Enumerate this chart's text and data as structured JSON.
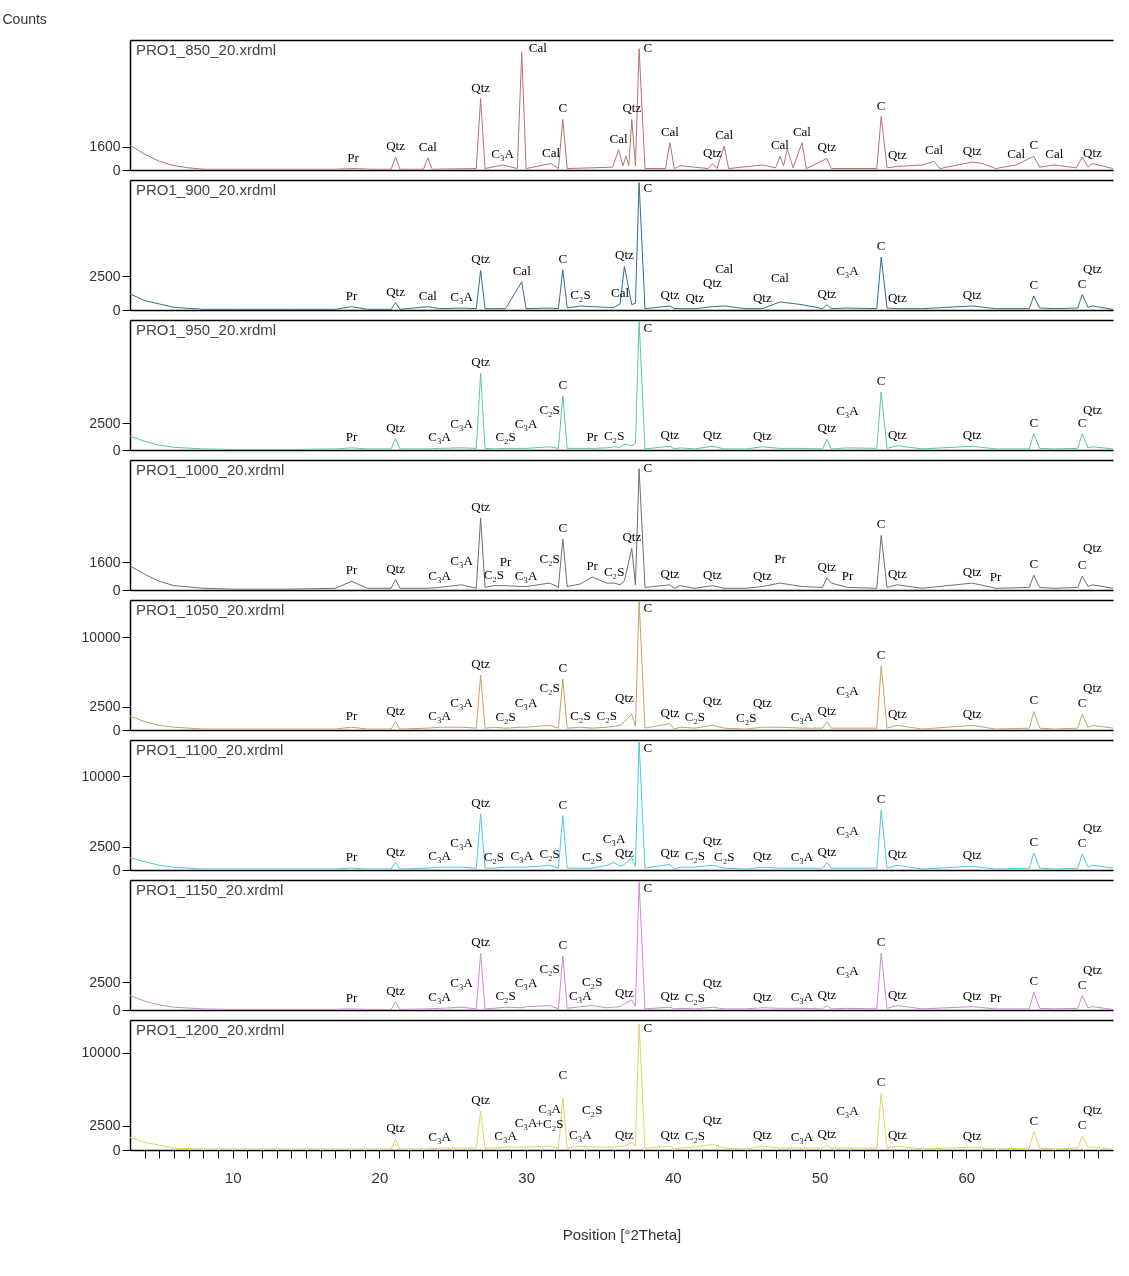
{
  "chart_data": [
    {
      "type": "line",
      "title": "PRO1_850_20.xrdml",
      "ylabel": "Counts",
      "color": "#b5736e",
      "tick_labels": "y",
      "xlim": [
        3,
        70
      ],
      "ylim": [
        0,
        9000
      ],
      "yticks": [
        0,
        1600
      ],
      "x": [
        3,
        4,
        5,
        6,
        7,
        8,
        10,
        14,
        17,
        18.2,
        19.5,
        20.8,
        21.1,
        21.4,
        23,
        23.3,
        23.6,
        26.6,
        26.9,
        27.2,
        28.4,
        29.4,
        29.7,
        30,
        31.7,
        32.2,
        32.5,
        32.8,
        34.5,
        35.9,
        36.3,
        36.6,
        36.8,
        37,
        37.2,
        37.45,
        37.7,
        38.1,
        39.5,
        39.8,
        40.1,
        40.5,
        42.4,
        42.7,
        43,
        43.5,
        43.8,
        46.1,
        47,
        47.3,
        47.55,
        47.8,
        48.2,
        48.8,
        49.1,
        50.5,
        50.8,
        53.9,
        54.2,
        54.6,
        55.3,
        57,
        57.8,
        58.2,
        60.4,
        61.1,
        62,
        63.4,
        64.6,
        65,
        66,
        67.5,
        67.9,
        68.3,
        68.6,
        70
      ],
      "values": [
        1700,
        1100,
        600,
        300,
        150,
        50,
        50,
        50,
        50,
        100,
        50,
        50,
        900,
        50,
        50,
        850,
        50,
        100,
        4950,
        100,
        350,
        100,
        8150,
        100,
        450,
        100,
        3500,
        100,
        150,
        200,
        1400,
        300,
        950,
        300,
        3500,
        300,
        8400,
        100,
        100,
        1900,
        100,
        300,
        100,
        450,
        100,
        1650,
        100,
        350,
        150,
        950,
        300,
        1450,
        150,
        1900,
        100,
        800,
        100,
        100,
        3700,
        150,
        250,
        350,
        600,
        100,
        550,
        450,
        100,
        350,
        950,
        200,
        350,
        150,
        900,
        200,
        450,
        100
      ],
      "annotations": [
        {
          "text": "Pr",
          "x": 18.2,
          "y": 100
        },
        {
          "text": "Qtz",
          "x": 21.1,
          "y": 900
        },
        {
          "text": "Cal",
          "x": 23.3,
          "y": 850
        },
        {
          "text": "Qtz",
          "x": 26.9,
          "y": 4950
        },
        {
          "text": "C₃A",
          "x": 28.4,
          "y": 350
        },
        {
          "text": "Cal",
          "x": 29.7,
          "y": 8150
        },
        {
          "text": "Cal",
          "x": 31.7,
          "y": 450
        },
        {
          "text": "C",
          "x": 32.5,
          "y": 3500
        },
        {
          "text": "Cal",
          "x": 36.3,
          "y": 1400
        },
        {
          "text": "Qtz",
          "x": 37.2,
          "y": 3500
        },
        {
          "text": "C",
          "x": 37.7,
          "y": 8400
        },
        {
          "text": "Cal",
          "x": 39.8,
          "y": 1900
        },
        {
          "text": "Qtz",
          "x": 42.7,
          "y": 450
        },
        {
          "text": "Cal",
          "x": 43.5,
          "y": 1650
        },
        {
          "text": "Cal",
          "x": 47.3,
          "y": 950
        },
        {
          "text": "Cal",
          "x": 48.8,
          "y": 1900
        },
        {
          "text": "Qtz",
          "x": 50.5,
          "y": 800
        },
        {
          "text": "C",
          "x": 54.2,
          "y": 3700
        },
        {
          "text": "Qtz",
          "x": 55.3,
          "y": 250
        },
        {
          "text": "Cal",
          "x": 57.8,
          "y": 600
        },
        {
          "text": "Qtz",
          "x": 60.4,
          "y": 550
        },
        {
          "text": "Cal",
          "x": 63.4,
          "y": 350
        },
        {
          "text": "C",
          "x": 64.6,
          "y": 950
        },
        {
          "text": "Cal",
          "x": 66,
          "y": 350
        },
        {
          "text": "Qtz",
          "x": 68.6,
          "y": 450
        }
      ]
    },
    {
      "type": "line",
      "title": "PRO1_900_20.xrdml",
      "color": "#336e8c",
      "tick_labels": "y",
      "xlim": [
        3,
        70
      ],
      "ylim": [
        0,
        9700
      ],
      "yticks": [
        0,
        2500
      ],
      "x": [
        3,
        4,
        5,
        6,
        8,
        10,
        14,
        17,
        18.1,
        19.2,
        20.8,
        21.1,
        21.4,
        23.3,
        24.1,
        25.6,
        26.6,
        26.9,
        27.2,
        27.8,
        28.6,
        29.7,
        30,
        31.6,
        32.2,
        32.5,
        32.8,
        33.7,
        34.5,
        35.5,
        36,
        36.4,
        36.7,
        37.2,
        37.45,
        37.7,
        38.1,
        39.8,
        40.1,
        40.5,
        41.5,
        42.7,
        43.5,
        45,
        46.1,
        47.3,
        48.8,
        50.2,
        50.5,
        50.8,
        51.9,
        53.9,
        54.2,
        54.6,
        55.3,
        57,
        60.4,
        62,
        64.3,
        64.6,
        65,
        66,
        67.6,
        67.9,
        68.3,
        68.6,
        70
      ],
      "values": [
        1200,
        700,
        450,
        200,
        50,
        50,
        50,
        50,
        250,
        50,
        50,
        550,
        50,
        250,
        100,
        150,
        100,
        2950,
        100,
        100,
        100,
        2100,
        100,
        150,
        100,
        3000,
        150,
        300,
        250,
        200,
        200,
        450,
        3250,
        400,
        500,
        9500,
        100,
        300,
        100,
        100,
        100,
        250,
        300,
        100,
        100,
        600,
        400,
        100,
        400,
        100,
        150,
        100,
        3950,
        150,
        100,
        100,
        300,
        100,
        100,
        1050,
        150,
        100,
        150,
        1150,
        200,
        300,
        50
      ],
      "annotations": [
        {
          "text": "Pr",
          "x": 18.1,
          "y": 250
        },
        {
          "text": "Qtz",
          "x": 21.1,
          "y": 550
        },
        {
          "text": "Cal",
          "x": 23.3,
          "y": 250
        },
        {
          "text": "C₃A",
          "x": 25.6,
          "y": 150
        },
        {
          "text": "Qtz",
          "x": 26.9,
          "y": 2950
        },
        {
          "text": "Cal",
          "x": 29.7,
          "y": 2100
        },
        {
          "text": "C",
          "x": 32.5,
          "y": 3000
        },
        {
          "text": "C₂S",
          "x": 33.7,
          "y": 300
        },
        {
          "text": "Cal",
          "x": 36.4,
          "y": 450
        },
        {
          "text": "Qtz",
          "x": 36.7,
          "y": 3250
        },
        {
          "text": "C",
          "x": 37.7,
          "y": 9500
        },
        {
          "text": "Qtz",
          "x": 39.8,
          "y": 300
        },
        {
          "text": "Qtz",
          "x": 41.5,
          "y": 100
        },
        {
          "text": "Qtz",
          "x": 42.7,
          "y": 250
        },
        {
          "text": "Cal",
          "x": 43.5,
          "y": 300
        },
        {
          "text": "Qtz",
          "x": 46.1,
          "y": 100
        },
        {
          "text": "Cal",
          "x": 47.3,
          "y": 600
        },
        {
          "text": "Qtz",
          "x": 50.5,
          "y": 400
        },
        {
          "text": "C₃A",
          "x": 51.9,
          "y": 150
        },
        {
          "text": "C",
          "x": 54.2,
          "y": 3950
        },
        {
          "text": "Qtz",
          "x": 55.3,
          "y": 100
        },
        {
          "text": "Qtz",
          "x": 60.4,
          "y": 300
        },
        {
          "text": "C",
          "x": 64.6,
          "y": 1050
        },
        {
          "text": "C",
          "x": 67.9,
          "y": 1150
        },
        {
          "text": "Qtz",
          "x": 68.6,
          "y": 300
        }
      ]
    },
    {
      "type": "line",
      "title": "PRO1_950_20.xrdml",
      "color": "#55c8a0",
      "tick_labels": "y",
      "xlim": [
        3,
        70
      ],
      "ylim": [
        0,
        12100
      ],
      "yticks": [
        0,
        2500
      ],
      "x": [
        3,
        4,
        5,
        6,
        8,
        10,
        14,
        17,
        18.1,
        19.2,
        20.8,
        21.1,
        21.4,
        23.3,
        24.1,
        25.6,
        26.6,
        26.9,
        27.2,
        27.8,
        28.6,
        29.7,
        30,
        31.6,
        32.2,
        32.5,
        32.8,
        33.7,
        34.5,
        35.5,
        36,
        36.4,
        36.7,
        37.2,
        37.45,
        37.7,
        38.1,
        39.8,
        40.1,
        40.5,
        41.5,
        42.7,
        43.5,
        45,
        46.1,
        47.3,
        48.8,
        50.2,
        50.5,
        50.8,
        51.9,
        53.9,
        54.2,
        54.6,
        55.3,
        57,
        60.4,
        62,
        64.3,
        64.6,
        65,
        66,
        67.6,
        67.9,
        68.3,
        68.6,
        70
      ],
      "values": [
        1300,
        800,
        450,
        250,
        100,
        50,
        50,
        100,
        200,
        100,
        100,
        1050,
        100,
        100,
        150,
        200,
        150,
        7150,
        150,
        100,
        150,
        150,
        150,
        300,
        150,
        5050,
        150,
        150,
        150,
        200,
        300,
        250,
        550,
        400,
        600,
        12000,
        100,
        350,
        100,
        200,
        100,
        350,
        100,
        100,
        300,
        150,
        150,
        100,
        1000,
        100,
        200,
        150,
        5400,
        150,
        400,
        100,
        350,
        100,
        100,
        1500,
        150,
        100,
        150,
        1500,
        200,
        300,
        100
      ],
      "annotations": [
        {
          "text": "Pr",
          "x": 18.1,
          "y": 200
        },
        {
          "text": "Qtz",
          "x": 21.1,
          "y": 1050
        },
        {
          "text": "C₃A",
          "x": 24.1,
          "y": 150
        },
        {
          "text": "C₃A",
          "x": 25.6,
          "y": 200
        },
        {
          "text": "Qtz",
          "x": 26.9,
          "y": 7150
        },
        {
          "text": "C₂S",
          "x": 28.6,
          "y": 150
        },
        {
          "text": "C₃A",
          "x": 30,
          "y": 150
        },
        {
          "text": "C₂S",
          "x": 31.6,
          "y": 300
        },
        {
          "text": "C",
          "x": 32.5,
          "y": 5050
        },
        {
          "text": "Pr",
          "x": 34.5,
          "y": 150
        },
        {
          "text": "C₂S",
          "x": 36,
          "y": 300
        },
        {
          "text": "C",
          "x": 37.7,
          "y": 12000
        },
        {
          "text": "Qtz",
          "x": 39.8,
          "y": 350
        },
        {
          "text": "Qtz",
          "x": 42.7,
          "y": 350
        },
        {
          "text": "Qtz",
          "x": 46.1,
          "y": 300
        },
        {
          "text": "Qtz",
          "x": 50.5,
          "y": 1000
        },
        {
          "text": "C₃A",
          "x": 51.9,
          "y": 200
        },
        {
          "text": "C",
          "x": 54.2,
          "y": 5400
        },
        {
          "text": "Qtz",
          "x": 55.3,
          "y": 400
        },
        {
          "text": "Qtz",
          "x": 60.4,
          "y": 350
        },
        {
          "text": "C",
          "x": 64.6,
          "y": 1500
        },
        {
          "text": "C",
          "x": 67.9,
          "y": 1500
        },
        {
          "text": "Qtz",
          "x": 68.6,
          "y": 300
        }
      ]
    },
    {
      "type": "line",
      "title": "PRO1_1000_20.xrdml",
      "color": "#6e6e6e",
      "tick_labels": "y",
      "xlim": [
        3,
        70
      ],
      "ylim": [
        0,
        7500
      ],
      "yticks": [
        0,
        1600
      ],
      "x": [
        3,
        4,
        5,
        6,
        8,
        10,
        14,
        17,
        18.1,
        19.2,
        20.8,
        21.1,
        21.4,
        23.3,
        24.1,
        25.6,
        26.6,
        26.9,
        27.2,
        27.8,
        28.6,
        29.7,
        30,
        31.6,
        32.2,
        32.5,
        32.8,
        33.7,
        34.5,
        35.5,
        36,
        36.4,
        36.7,
        37.2,
        37.45,
        37.7,
        38.1,
        39.8,
        40.1,
        40.5,
        41.5,
        42.7,
        43.5,
        45,
        46.1,
        47.3,
        48.8,
        50.2,
        50.5,
        50.8,
        51.9,
        53.9,
        54.2,
        54.6,
        55.3,
        57,
        60.4,
        62,
        64.3,
        64.6,
        65,
        66,
        67.6,
        67.9,
        68.3,
        68.6,
        70
      ],
      "values": [
        1400,
        900,
        500,
        250,
        100,
        50,
        50,
        100,
        500,
        100,
        100,
        600,
        100,
        100,
        150,
        300,
        100,
        4150,
        150,
        250,
        250,
        200,
        200,
        400,
        150,
        2950,
        200,
        350,
        750,
        400,
        400,
        300,
        550,
        2400,
        300,
        7000,
        150,
        300,
        100,
        250,
        100,
        250,
        100,
        100,
        200,
        400,
        200,
        150,
        700,
        400,
        150,
        100,
        3150,
        150,
        300,
        100,
        400,
        100,
        150,
        850,
        150,
        100,
        150,
        800,
        200,
        300,
        100
      ],
      "annotations": [
        {
          "text": "Pr",
          "x": 18.1,
          "y": 500
        },
        {
          "text": "Qtz",
          "x": 21.1,
          "y": 600
        },
        {
          "text": "C₃A",
          "x": 24.1,
          "y": 150
        },
        {
          "text": "C₃A",
          "x": 25.6,
          "y": 300
        },
        {
          "text": "Qtz",
          "x": 26.9,
          "y": 4150
        },
        {
          "text": "C₂S",
          "x": 27.8,
          "y": 250
        },
        {
          "text": "Pr",
          "x": 28.6,
          "y": 250
        },
        {
          "text": "C₃A",
          "x": 30,
          "y": 200
        },
        {
          "text": "C₂S",
          "x": 31.6,
          "y": 400
        },
        {
          "text": "C",
          "x": 32.5,
          "y": 2950
        },
        {
          "text": "Pr",
          "x": 34.5,
          "y": 750
        },
        {
          "text": "C₂S",
          "x": 36,
          "y": 400
        },
        {
          "text": "Qtz",
          "x": 37.2,
          "y": 2400
        },
        {
          "text": "C",
          "x": 37.7,
          "y": 7000
        },
        {
          "text": "Qtz",
          "x": 39.8,
          "y": 300
        },
        {
          "text": "Qtz",
          "x": 42.7,
          "y": 250
        },
        {
          "text": "Qtz",
          "x": 46.1,
          "y": 200
        },
        {
          "text": "Pr",
          "x": 47.3,
          "y": 400
        },
        {
          "text": "Qtz",
          "x": 50.5,
          "y": 700
        },
        {
          "text": "Pr",
          "x": 51.9,
          "y": 150
        },
        {
          "text": "C",
          "x": 54.2,
          "y": 3150
        },
        {
          "text": "Qtz",
          "x": 55.3,
          "y": 300
        },
        {
          "text": "Qtz",
          "x": 60.4,
          "y": 400
        },
        {
          "text": "Pr",
          "x": 62,
          "y": 100
        },
        {
          "text": "C",
          "x": 64.6,
          "y": 850
        },
        {
          "text": "C",
          "x": 67.9,
          "y": 800
        },
        {
          "text": "Qtz",
          "x": 68.6,
          "y": 300
        }
      ]
    },
    {
      "type": "line",
      "title": "PRO1_1050_20.xrdml",
      "color": "#c9a064",
      "tick_labels": "y",
      "xlim": [
        3,
        70
      ],
      "ylim": [
        0,
        14000
      ],
      "yticks": [
        0,
        2500,
        10000
      ],
      "x": [
        3,
        4,
        5,
        6,
        8,
        10,
        14,
        17,
        18.1,
        19.2,
        20.8,
        21.1,
        21.4,
        23.3,
        24.1,
        25.6,
        26.6,
        26.9,
        27.2,
        27.8,
        28.6,
        29.7,
        30,
        31.6,
        32.2,
        32.5,
        32.8,
        33.7,
        34.5,
        35.5,
        36,
        36.4,
        36.7,
        37.2,
        37.45,
        37.7,
        38.1,
        39.8,
        40.1,
        40.5,
        41.5,
        42.7,
        43.5,
        45,
        46.1,
        47.3,
        48.8,
        50.2,
        50.5,
        50.8,
        51.9,
        53.9,
        54.2,
        54.6,
        55.3,
        57,
        60.4,
        62,
        64.3,
        64.6,
        65,
        66,
        67.6,
        67.9,
        68.3,
        68.6,
        70
      ],
      "values": [
        1500,
        900,
        500,
        300,
        100,
        100,
        100,
        100,
        300,
        100,
        100,
        900,
        100,
        200,
        300,
        300,
        200,
        5900,
        200,
        300,
        200,
        300,
        300,
        500,
        200,
        5500,
        200,
        300,
        200,
        300,
        400,
        500,
        900,
        1700,
        400,
        13900,
        200,
        700,
        100,
        300,
        200,
        500,
        200,
        100,
        300,
        300,
        200,
        200,
        900,
        200,
        200,
        200,
        6900,
        200,
        500,
        100,
        500,
        100,
        200,
        2000,
        200,
        100,
        200,
        1700,
        300,
        500,
        200
      ],
      "annotations": [
        {
          "text": "Pr",
          "x": 18.1,
          "y": 300
        },
        {
          "text": "Qtz",
          "x": 21.1,
          "y": 900
        },
        {
          "text": "C₃A",
          "x": 24.1,
          "y": 300
        },
        {
          "text": "C₃A",
          "x": 25.6,
          "y": 300
        },
        {
          "text": "Qtz",
          "x": 26.9,
          "y": 5900
        },
        {
          "text": "C₂S",
          "x": 28.6,
          "y": 200
        },
        {
          "text": "C₃A",
          "x": 30,
          "y": 300
        },
        {
          "text": "C₂S",
          "x": 31.6,
          "y": 500
        },
        {
          "text": "C",
          "x": 32.5,
          "y": 5500
        },
        {
          "text": "C₂S",
          "x": 33.7,
          "y": 300
        },
        {
          "text": "C₂S",
          "x": 35.5,
          "y": 300
        },
        {
          "text": "Qtz",
          "x": 36.7,
          "y": 900
        },
        {
          "text": "C",
          "x": 37.7,
          "y": 13900
        },
        {
          "text": "Qtz",
          "x": 39.8,
          "y": 700
        },
        {
          "text": "C₂S",
          "x": 41.5,
          "y": 200
        },
        {
          "text": "Qtz",
          "x": 42.7,
          "y": 500
        },
        {
          "text": "C₂S",
          "x": 45,
          "y": 100
        },
        {
          "text": "Qtz",
          "x": 46.1,
          "y": 300
        },
        {
          "text": "C₃A",
          "x": 48.8,
          "y": 200
        },
        {
          "text": "Qtz",
          "x": 50.5,
          "y": 900
        },
        {
          "text": "C₃A",
          "x": 51.9,
          "y": 200
        },
        {
          "text": "C",
          "x": 54.2,
          "y": 6900
        },
        {
          "text": "Qtz",
          "x": 55.3,
          "y": 500
        },
        {
          "text": "Qtz",
          "x": 60.4,
          "y": 500
        },
        {
          "text": "C",
          "x": 64.6,
          "y": 2000
        },
        {
          "text": "C",
          "x": 67.9,
          "y": 1700
        },
        {
          "text": "Qtz",
          "x": 68.6,
          "y": 500
        }
      ]
    },
    {
      "type": "line",
      "title": "PRO1_1100_20.xrdml",
      "color": "#4cc8dc",
      "tick_labels": "y",
      "xlim": [
        3,
        70
      ],
      "ylim": [
        0,
        13900
      ],
      "yticks": [
        0,
        2500,
        10000
      ],
      "x": [
        3,
        4,
        5,
        6,
        8,
        10,
        14,
        17,
        18.1,
        19.2,
        20.8,
        21.1,
        21.4,
        23.3,
        24.1,
        25.6,
        26.6,
        26.9,
        27.2,
        27.8,
        28.6,
        29.7,
        30,
        31.6,
        32.2,
        32.5,
        32.8,
        33.7,
        34.5,
        35.5,
        36,
        36.4,
        36.7,
        37.2,
        37.45,
        37.7,
        38.1,
        39.8,
        40.1,
        40.5,
        41.5,
        42.7,
        43.5,
        45,
        46.1,
        47.3,
        48.8,
        50.2,
        50.5,
        50.8,
        51.9,
        53.9,
        54.2,
        54.6,
        55.3,
        57,
        60.4,
        62,
        64.3,
        64.6,
        65,
        66,
        67.6,
        67.9,
        68.3,
        68.6,
        70
      ],
      "values": [
        1300,
        900,
        500,
        300,
        100,
        100,
        100,
        100,
        200,
        100,
        100,
        800,
        100,
        200,
        300,
        300,
        200,
        6000,
        200,
        200,
        300,
        300,
        300,
        500,
        200,
        5800,
        200,
        200,
        200,
        500,
        800,
        400,
        600,
        1300,
        400,
        13700,
        200,
        600,
        100,
        300,
        300,
        500,
        200,
        100,
        300,
        200,
        200,
        200,
        800,
        200,
        200,
        200,
        6400,
        200,
        500,
        100,
        400,
        100,
        200,
        1800,
        200,
        100,
        200,
        1700,
        300,
        500,
        200
      ],
      "annotations": [
        {
          "text": "Pr",
          "x": 18.1,
          "y": 200
        },
        {
          "text": "Qtz",
          "x": 21.1,
          "y": 800
        },
        {
          "text": "C₃A",
          "x": 24.1,
          "y": 300
        },
        {
          "text": "C₃A",
          "x": 25.6,
          "y": 300
        },
        {
          "text": "Qtz",
          "x": 26.9,
          "y": 6000
        },
        {
          "text": "C₂S",
          "x": 27.8,
          "y": 200
        },
        {
          "text": "C₃A",
          "x": 29.7,
          "y": 300
        },
        {
          "text": "C₂S",
          "x": 31.6,
          "y": 500
        },
        {
          "text": "C",
          "x": 32.5,
          "y": 5800
        },
        {
          "text": "C₂S",
          "x": 34.5,
          "y": 200
        },
        {
          "text": "C₃A",
          "x": 36,
          "y": 800
        },
        {
          "text": "Qtz",
          "x": 36.7,
          "y": 600
        },
        {
          "text": "C",
          "x": 37.7,
          "y": 13700
        },
        {
          "text": "Qtz",
          "x": 39.8,
          "y": 600
        },
        {
          "text": "C₂S",
          "x": 41.5,
          "y": 300
        },
        {
          "text": "Qtz",
          "x": 42.7,
          "y": 500
        },
        {
          "text": "C₂S",
          "x": 43.5,
          "y": 200
        },
        {
          "text": "Qtz",
          "x": 46.1,
          "y": 300
        },
        {
          "text": "C₃A",
          "x": 48.8,
          "y": 200
        },
        {
          "text": "Qtz",
          "x": 50.5,
          "y": 800
        },
        {
          "text": "C₃A",
          "x": 51.9,
          "y": 200
        },
        {
          "text": "C",
          "x": 54.2,
          "y": 6400
        },
        {
          "text": "Qtz",
          "x": 55.3,
          "y": 500
        },
        {
          "text": "Qtz",
          "x": 60.4,
          "y": 400
        },
        {
          "text": "C",
          "x": 64.6,
          "y": 1800
        },
        {
          "text": "C",
          "x": 67.9,
          "y": 1700
        },
        {
          "text": "Qtz",
          "x": 68.6,
          "y": 500
        }
      ]
    },
    {
      "type": "line",
      "title": "PRO1_1150_20.xrdml",
      "color": "#cc8ad4",
      "tick_labels": "y",
      "xlim": [
        3,
        70
      ],
      "ylim": [
        0,
        11700
      ],
      "yticks": [
        0,
        2500
      ],
      "x": [
        3,
        4,
        5,
        6,
        8,
        10,
        14,
        17,
        18.1,
        19.2,
        20.8,
        21.1,
        21.4,
        23.3,
        24.1,
        25.6,
        26.6,
        26.9,
        27.2,
        27.8,
        28.6,
        29.7,
        30,
        31.6,
        32.2,
        32.5,
        32.8,
        33.7,
        34.5,
        35.5,
        36,
        36.4,
        36.7,
        37.2,
        37.45,
        37.7,
        38.1,
        39.8,
        40.1,
        40.5,
        41.5,
        42.7,
        43.5,
        45,
        46.1,
        47.3,
        48.8,
        50.2,
        50.5,
        50.8,
        51.9,
        53.9,
        54.2,
        54.6,
        55.3,
        57,
        60.4,
        62,
        64.3,
        64.6,
        65,
        66,
        67.6,
        67.9,
        68.3,
        68.6,
        70
      ],
      "values": [
        1300,
        800,
        450,
        250,
        100,
        50,
        50,
        50,
        100,
        50,
        50,
        750,
        50,
        100,
        150,
        250,
        100,
        5100,
        100,
        150,
        250,
        200,
        300,
        400,
        100,
        4850,
        150,
        300,
        400,
        200,
        250,
        300,
        550,
        900,
        350,
        11500,
        100,
        250,
        100,
        150,
        100,
        250,
        100,
        100,
        200,
        150,
        150,
        100,
        400,
        100,
        150,
        100,
        5100,
        150,
        400,
        100,
        300,
        100,
        100,
        1600,
        150,
        100,
        150,
        1300,
        200,
        300,
        50
      ],
      "annotations": [
        {
          "text": "Pr",
          "x": 18.1,
          "y": 100
        },
        {
          "text": "Qtz",
          "x": 21.1,
          "y": 750
        },
        {
          "text": "C₃A",
          "x": 24.1,
          "y": 150
        },
        {
          "text": "C₃A",
          "x": 25.6,
          "y": 250
        },
        {
          "text": "Qtz",
          "x": 26.9,
          "y": 5100
        },
        {
          "text": "C₂S",
          "x": 28.6,
          "y": 250
        },
        {
          "text": "C₃A",
          "x": 30,
          "y": 300
        },
        {
          "text": "C₂S",
          "x": 31.6,
          "y": 400
        },
        {
          "text": "C",
          "x": 32.5,
          "y": 4850
        },
        {
          "text": "C₃A",
          "x": 33.7,
          "y": 300
        },
        {
          "text": "C₂S",
          "x": 34.5,
          "y": 400
        },
        {
          "text": "Qtz",
          "x": 36.7,
          "y": 550
        },
        {
          "text": "C",
          "x": 37.7,
          "y": 11500
        },
        {
          "text": "Qtz",
          "x": 39.8,
          "y": 250
        },
        {
          "text": "C₂S",
          "x": 41.5,
          "y": 100
        },
        {
          "text": "Qtz",
          "x": 42.7,
          "y": 250
        },
        {
          "text": "Qtz",
          "x": 46.1,
          "y": 200
        },
        {
          "text": "C₃A",
          "x": 48.8,
          "y": 150
        },
        {
          "text": "Qtz",
          "x": 50.5,
          "y": 400
        },
        {
          "text": "C₃A",
          "x": 51.9,
          "y": 150
        },
        {
          "text": "C",
          "x": 54.2,
          "y": 5100
        },
        {
          "text": "Qtz",
          "x": 55.3,
          "y": 400
        },
        {
          "text": "Qtz",
          "x": 60.4,
          "y": 300
        },
        {
          "text": "Pr",
          "x": 62,
          "y": 100
        },
        {
          "text": "C",
          "x": 64.6,
          "y": 1600
        },
        {
          "text": "C",
          "x": 67.9,
          "y": 1300
        },
        {
          "text": "Qtz",
          "x": 68.6,
          "y": 300
        }
      ]
    },
    {
      "type": "line",
      "title": "PRO1_1200_20.xrdml",
      "xlabel": "Position [°2Theta]",
      "color": "#e0d45e",
      "xlim": [
        3,
        70
      ],
      "ylim": [
        0,
        13400
      ],
      "yticks": [
        0,
        2500,
        10000
      ],
      "xticks": [
        {
          "value": 4,
          "label": null
        },
        {
          "value": 5,
          "label": null
        },
        {
          "value": 6,
          "label": null
        },
        {
          "value": 7,
          "label": null
        },
        {
          "value": 8,
          "label": null
        },
        {
          "value": 9,
          "label": null
        },
        10,
        {
          "value": 11,
          "label": null
        },
        {
          "value": 12,
          "label": null
        },
        {
          "value": 13,
          "label": null
        },
        {
          "value": 14,
          "label": null
        },
        {
          "value": 15,
          "label": null
        },
        {
          "value": 16,
          "label": null
        },
        {
          "value": 17,
          "label": null
        },
        {
          "value": 18,
          "label": null
        },
        {
          "value": 19,
          "label": null
        },
        20,
        {
          "value": 21,
          "label": null
        },
        {
          "value": 22,
          "label": null
        },
        {
          "value": 23,
          "label": null
        },
        {
          "value": 24,
          "label": null
        },
        {
          "value": 25,
          "label": null
        },
        {
          "value": 26,
          "label": null
        },
        {
          "value": 27,
          "label": null
        },
        {
          "value": 28,
          "label": null
        },
        {
          "value": 29,
          "label": null
        },
        30,
        {
          "value": 31,
          "label": null
        },
        {
          "value": 32,
          "label": null
        },
        {
          "value": 33,
          "label": null
        },
        {
          "value": 34,
          "label": null
        },
        {
          "value": 35,
          "label": null
        },
        {
          "value": 36,
          "label": null
        },
        {
          "value": 37,
          "label": null
        },
        {
          "value": 38,
          "label": null
        },
        {
          "value": 39,
          "label": null
        },
        40,
        {
          "value": 41,
          "label": null
        },
        {
          "value": 42,
          "label": null
        },
        {
          "value": 43,
          "label": null
        },
        {
          "value": 44,
          "label": null
        },
        {
          "value": 45,
          "label": null
        },
        {
          "value": 46,
          "label": null
        },
        {
          "value": 47,
          "label": null
        },
        {
          "value": 48,
          "label": null
        },
        {
          "value": 49,
          "label": null
        },
        50,
        {
          "value": 51,
          "label": null
        },
        {
          "value": 52,
          "label": null
        },
        {
          "value": 53,
          "label": null
        },
        {
          "value": 54,
          "label": null
        },
        {
          "value": 55,
          "label": null
        },
        {
          "value": 56,
          "label": null
        },
        {
          "value": 57,
          "label": null
        },
        {
          "value": 58,
          "label": null
        },
        {
          "value": 59,
          "label": null
        },
        60,
        {
          "value": 61,
          "label": null
        },
        {
          "value": 62,
          "label": null
        },
        {
          "value": 63,
          "label": null
        },
        {
          "value": 64,
          "label": null
        },
        {
          "value": 65,
          "label": null
        },
        {
          "value": 66,
          "label": null
        },
        {
          "value": 67,
          "label": null
        },
        {
          "value": 68,
          "label": null
        },
        {
          "value": 69,
          "label": null
        }
      ],
      "x": [
        3,
        4,
        5,
        6,
        8,
        10,
        14,
        17,
        18.1,
        19.2,
        20.8,
        21.1,
        21.4,
        23.3,
        24.1,
        25.6,
        26.6,
        26.9,
        27.2,
        27.8,
        28.6,
        29.7,
        30,
        31.6,
        32.2,
        32.5,
        32.8,
        33.7,
        34.5,
        35.5,
        36,
        36.4,
        36.7,
        37.2,
        37.45,
        37.7,
        38.1,
        39.8,
        40.1,
        40.5,
        41.5,
        42.7,
        43.5,
        45,
        46.1,
        47.3,
        48.8,
        50.2,
        50.5,
        50.8,
        51.9,
        53.9,
        54.2,
        54.6,
        55.3,
        57,
        60.4,
        62,
        64.3,
        64.6,
        65,
        66,
        67.6,
        67.9,
        68.3,
        68.6,
        70
      ],
      "values": [
        1300,
        800,
        500,
        200,
        100,
        100,
        100,
        100,
        100,
        100,
        100,
        1100,
        100,
        100,
        200,
        200,
        200,
        4000,
        200,
        200,
        300,
        300,
        300,
        400,
        200,
        5300,
        200,
        400,
        300,
        300,
        300,
        400,
        400,
        800,
        400,
        13000,
        200,
        400,
        100,
        200,
        300,
        600,
        200,
        100,
        400,
        200,
        200,
        200,
        500,
        200,
        200,
        200,
        5900,
        200,
        400,
        100,
        300,
        100,
        200,
        1900,
        200,
        100,
        200,
        1400,
        300,
        300,
        100
      ],
      "annotations": [
        {
          "text": "Qtz",
          "x": 21.1,
          "y": 1100
        },
        {
          "text": "C₃A",
          "x": 24.1,
          "y": 200
        },
        {
          "text": "Qtz",
          "x": 26.9,
          "y": 4000
        },
        {
          "text": "C₃A",
          "x": 28.6,
          "y": 300
        },
        {
          "text": "C₃A",
          "x": 30,
          "y": 300
        },
        {
          "text": "C₃A\n+C₂S",
          "x": 31.6,
          "y": 400
        },
        {
          "text": "C",
          "x": 32.5,
          "y": 5300
        },
        {
          "text": "C₃A",
          "x": 33.7,
          "y": 400
        },
        {
          "text": "C₂S",
          "x": 34.5,
          "y": 300
        },
        {
          "text": "Qtz",
          "x": 36.7,
          "y": 400
        },
        {
          "text": "C",
          "x": 37.7,
          "y": 13000
        },
        {
          "text": "Qtz",
          "x": 39.8,
          "y": 400
        },
        {
          "text": "C₂S",
          "x": 41.5,
          "y": 300
        },
        {
          "text": "Qtz",
          "x": 42.7,
          "y": 600
        },
        {
          "text": "Qtz",
          "x": 46.1,
          "y": 400
        },
        {
          "text": "C₃A",
          "x": 48.8,
          "y": 200
        },
        {
          "text": "Qtz",
          "x": 50.5,
          "y": 500
        },
        {
          "text": "C₃A",
          "x": 51.9,
          "y": 200
        },
        {
          "text": "C",
          "x": 54.2,
          "y": 5900
        },
        {
          "text": "Qtz",
          "x": 55.3,
          "y": 400
        },
        {
          "text": "Qtz",
          "x": 60.4,
          "y": 300
        },
        {
          "text": "C",
          "x": 64.6,
          "y": 1900
        },
        {
          "text": "C",
          "x": 67.9,
          "y": 1400
        },
        {
          "text": "Qtz",
          "x": 68.6,
          "y": 300
        }
      ]
    }
  ]
}
